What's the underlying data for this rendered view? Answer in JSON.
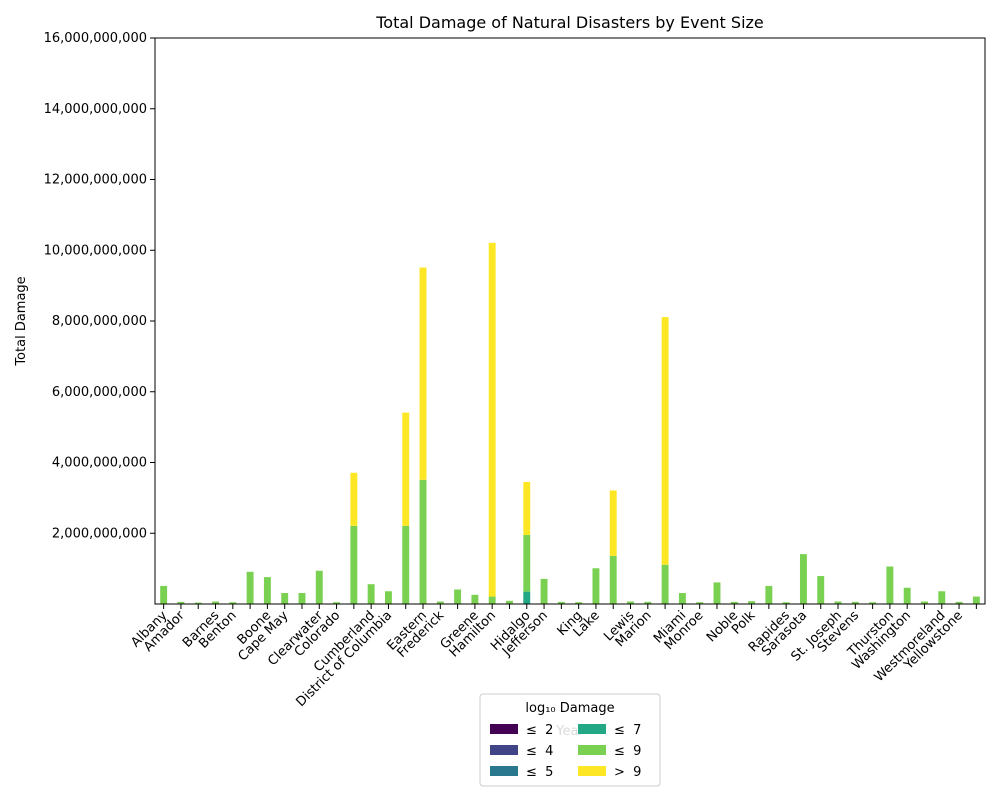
{
  "chart_data": {
    "type": "stacked_bar",
    "title": "Total Damage of Natural Disasters by Event Size",
    "x_label": "Year",
    "y_label": "Total Damage",
    "legend_title": "log₁₀ Damage",
    "legend_position": "lower center",
    "categories": [
      "Albany",
      "Amador",
      null,
      "Barnes",
      "Benton",
      null,
      "Boone",
      "Cape May",
      null,
      "Clearwater",
      "Colorado",
      null,
      "Cumberland",
      "District of Columbia",
      null,
      "Eastern",
      "Frederick",
      null,
      "Greene",
      "Hamilton",
      null,
      "Hidalgo",
      "Jefferson",
      null,
      "King",
      "Lake",
      null,
      "Lewis",
      "Marion",
      null,
      "Miami",
      "Monroe",
      null,
      "Noble",
      "Polk",
      null,
      "Rapides",
      "Sarasota",
      null,
      "St. Joseph",
      "Stevens",
      null,
      "Thurston",
      "Washington",
      null,
      "Westmoreland",
      "Yellowstone",
      null
    ],
    "series": [
      {
        "name": "≤  2",
        "color": "#440154",
        "values": [
          50,
          50,
          50,
          50,
          50,
          50,
          50,
          50,
          50,
          50,
          50,
          50,
          50,
          50,
          50,
          50,
          50,
          50,
          50,
          50,
          50,
          50,
          50,
          50,
          50,
          50,
          50,
          50,
          50,
          50,
          50,
          50,
          50,
          50,
          50,
          50,
          50,
          50,
          50,
          50,
          50,
          50,
          50,
          50,
          50,
          50,
          50,
          50
        ]
      },
      {
        "name": "≤  4",
        "color": "#414487",
        "values": [
          8000,
          8000,
          8000,
          8000,
          8000,
          8000,
          8000,
          8000,
          8000,
          8000,
          8000,
          8000,
          8000,
          8000,
          8000,
          8000,
          8000,
          8000,
          8000,
          8000,
          8000,
          8000,
          8000,
          8000,
          8000,
          8000,
          8000,
          8000,
          8000,
          8000,
          8000,
          8000,
          8000,
          8000,
          8000,
          8000,
          8000,
          8000,
          8000,
          8000,
          8000,
          8000,
          8000,
          8000,
          8000,
          8000,
          8000,
          8000
        ]
      },
      {
        "name": "≤  5",
        "color": "#2a788e",
        "values": [
          200000,
          200000,
          200000,
          200000,
          200000,
          200000,
          200000,
          200000,
          200000,
          200000,
          200000,
          200000,
          200000,
          200000,
          200000,
          200000,
          200000,
          200000,
          200000,
          200000,
          200000,
          200000,
          200000,
          200000,
          200000,
          200000,
          200000,
          200000,
          200000,
          200000,
          200000,
          200000,
          200000,
          200000,
          200000,
          200000,
          200000,
          200000,
          200000,
          200000,
          200000,
          200000,
          200000,
          200000,
          200000,
          200000,
          200000,
          200000
        ]
      },
      {
        "name": "≤  7",
        "color": "#22a884",
        "values": [
          10000000,
          10000000,
          10000000,
          10000000,
          10000000,
          10000000,
          10000000,
          10000000,
          10000000,
          10000000,
          10000000,
          10000000,
          10000000,
          10000000,
          10000000,
          10000000,
          10000000,
          10000000,
          10000000,
          10000000,
          10000000,
          350000000,
          10000000,
          10000000,
          10000000,
          10000000,
          10000000,
          10000000,
          10000000,
          10000000,
          10000000,
          10000000,
          10000000,
          10000000,
          10000000,
          10000000,
          10000000,
          10000000,
          10000000,
          10000000,
          10000000,
          10000000,
          10000000,
          10000000,
          10000000,
          10000000,
          10000000,
          10000000
        ]
      },
      {
        "name": "≤  9",
        "color": "#7ad151",
        "values": [
          500000000,
          50000000,
          30000000,
          60000000,
          40000000,
          900000000,
          750000000,
          300000000,
          300000000,
          930000000,
          40000000,
          2200000000,
          550000000,
          350000000,
          2200000000,
          3500000000,
          60000000,
          400000000,
          250000000,
          200000000,
          80000000,
          1600000000,
          700000000,
          50000000,
          40000000,
          1000000000,
          1350000000,
          60000000,
          50000000,
          1100000000,
          300000000,
          40000000,
          600000000,
          50000000,
          70000000,
          500000000,
          40000000,
          1400000000,
          780000000,
          60000000,
          50000000,
          40000000,
          1050000000,
          450000000,
          60000000,
          350000000,
          50000000,
          200000000
        ]
      },
      {
        "name": ">  9",
        "color": "#fde725",
        "values": [
          0,
          0,
          0,
          0,
          0,
          0,
          0,
          0,
          0,
          0,
          0,
          1500000000,
          0,
          0,
          3200000000,
          6000000000,
          0,
          0,
          0,
          10000000000,
          0,
          1500000000,
          0,
          0,
          0,
          0,
          1850000000,
          0,
          0,
          7000000000,
          0,
          0,
          0,
          0,
          0,
          0,
          0,
          0,
          0,
          0,
          0,
          0,
          0,
          0,
          0,
          0,
          0,
          0
        ]
      }
    ],
    "ylim": [
      0,
      16000000000
    ],
    "yticks": [
      {
        "value": 2000000000,
        "label": "2,000,000,000"
      },
      {
        "value": 4000000000,
        "label": "4,000,000,000"
      },
      {
        "value": 6000000000,
        "label": "6,000,000,000"
      },
      {
        "value": 8000000000,
        "label": "8,000,000,000"
      },
      {
        "value": 10000000000,
        "label": "10,000,000,000"
      },
      {
        "value": 12000000000,
        "label": "12,000,000,000"
      },
      {
        "value": 14000000000,
        "label": "14,000,000,000"
      },
      {
        "value": 16000000000,
        "label": "16,000,000,000"
      }
    ]
  }
}
